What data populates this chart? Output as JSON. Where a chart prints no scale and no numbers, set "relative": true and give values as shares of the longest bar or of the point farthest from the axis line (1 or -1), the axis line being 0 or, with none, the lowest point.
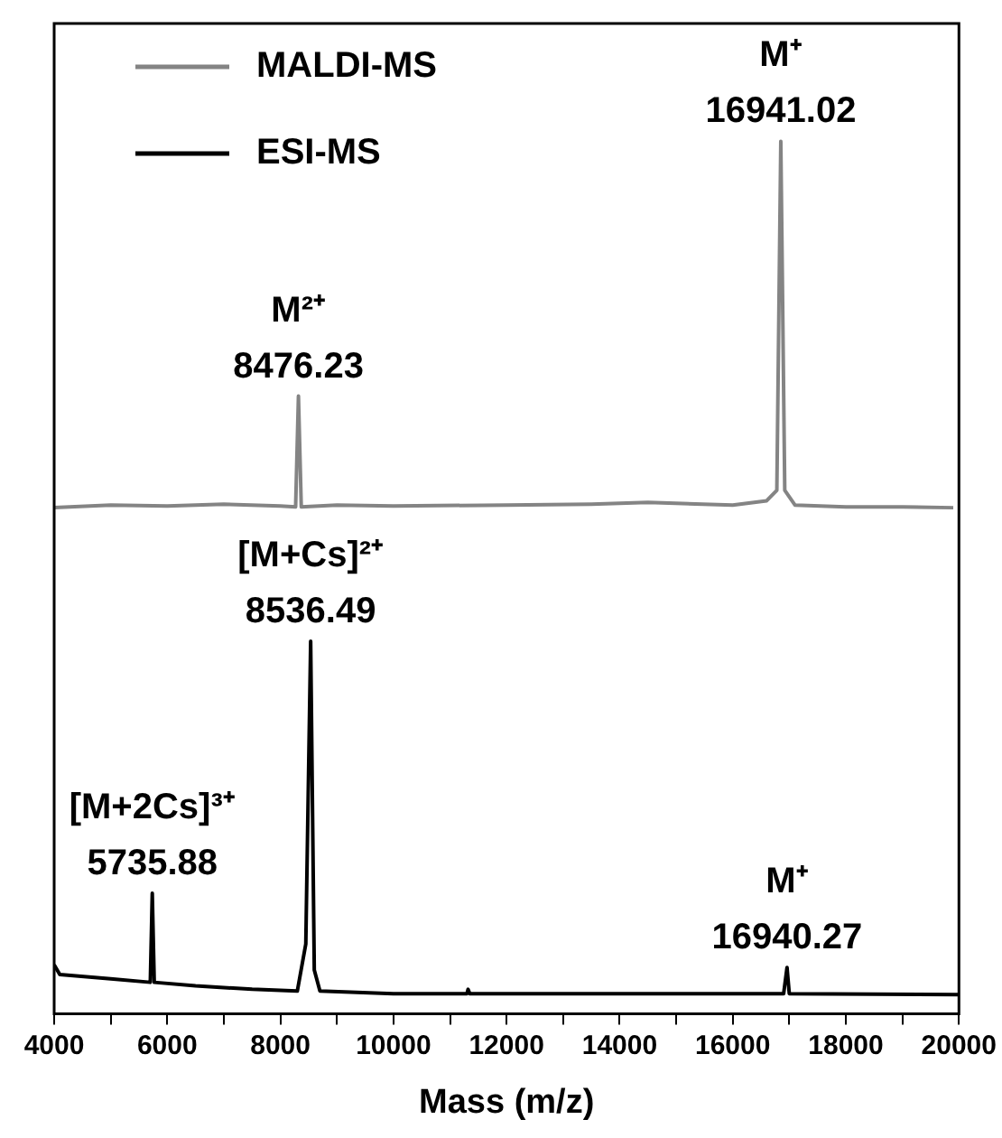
{
  "chart_data": {
    "type": "line",
    "relative": true,
    "xlabel": "Mass (m/z)",
    "xlim": [
      4000,
      20000
    ],
    "xticks": [
      4000,
      {
        "value": 5000,
        "label": null
      },
      6000,
      {
        "value": 7000,
        "label": null
      },
      8000,
      {
        "value": 9000,
        "label": null
      },
      10000,
      {
        "value": 11000,
        "label": null
      },
      12000,
      {
        "value": 13000,
        "label": null
      },
      14000,
      {
        "value": 15000,
        "label": null
      },
      16000,
      {
        "value": 17000,
        "label": null
      },
      18000,
      {
        "value": 19000,
        "label": null
      },
      20000
    ],
    "legend": "top left",
    "grid": false,
    "marker": "none",
    "line_style": "solid",
    "series": [
      {
        "name": "MALDI-MS",
        "color": "#848484",
        "x": [
          4000,
          5000,
          6000,
          7000,
          8000,
          8270,
          8320,
          8370,
          9000,
          10000,
          12000,
          13500,
          14500,
          16000,
          16600,
          16780,
          16850,
          16920,
          17100,
          18000,
          19000,
          19900
        ],
        "values": [
          0.58,
          0.583,
          0.582,
          0.584,
          0.582,
          0.581,
          0.708,
          0.581,
          0.583,
          0.582,
          0.583,
          0.584,
          0.586,
          0.583,
          0.588,
          0.6,
          1.0,
          0.6,
          0.583,
          0.581,
          0.581,
          0.58
        ]
      },
      {
        "name": "ESI-MS",
        "color": "#000000",
        "x": [
          4000,
          4100,
          5000,
          5700,
          5735,
          5770,
          6500,
          7500,
          8300,
          8450,
          8536,
          8600,
          8700,
          10000,
          11300,
          11320,
          11350,
          16900,
          16960,
          17000,
          20000
        ],
        "values": [
          0.056,
          0.045,
          0.04,
          0.036,
          0.138,
          0.036,
          0.032,
          0.028,
          0.026,
          0.08,
          0.427,
          0.05,
          0.026,
          0.023,
          0.023,
          0.028,
          0.023,
          0.023,
          0.053,
          0.023,
          0.022
        ]
      }
    ],
    "annotations": [
      {
        "text": "M²⁺\n8476.23",
        "x": 8320,
        "y": 0.708
      },
      {
        "text": "M⁺\n16941.02",
        "x": 16850,
        "y": 1.0
      },
      {
        "text": "[M+2Cs]³⁺\n5735.88",
        "x": 5735,
        "y": 0.138
      },
      {
        "text": "[M+Cs]²⁺\n8536.49",
        "x": 8536,
        "y": 0.427
      },
      {
        "text": "M⁺\n16940.27",
        "x": 16960,
        "y": 0.053
      }
    ]
  }
}
